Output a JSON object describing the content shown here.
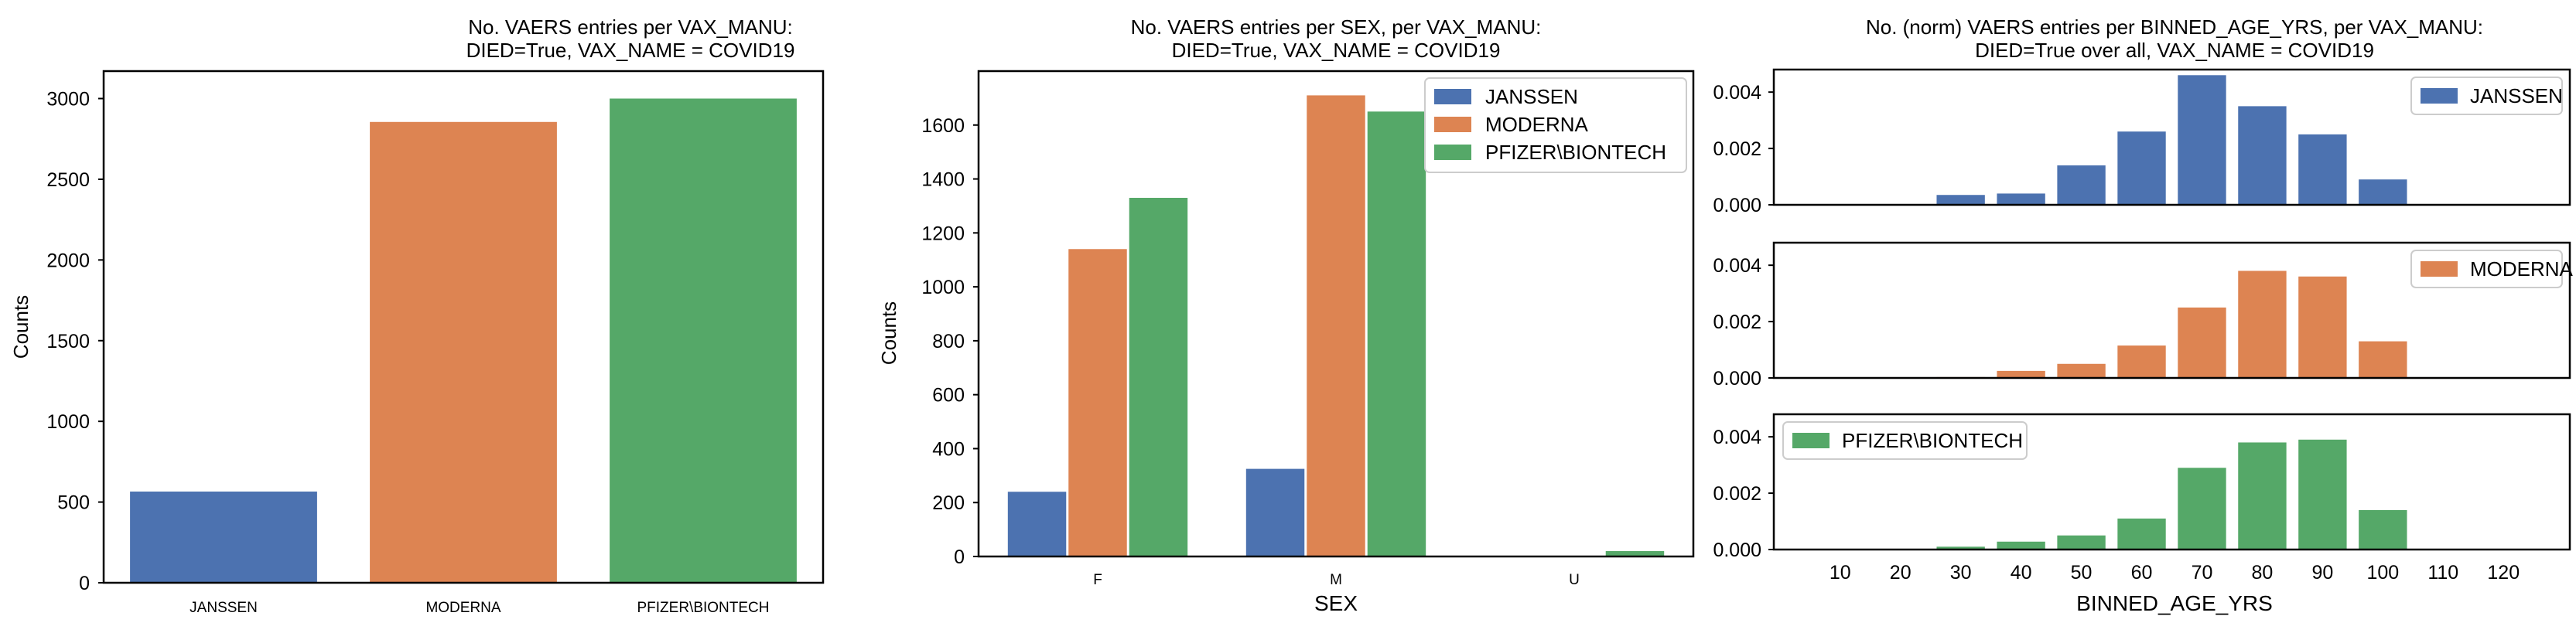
{
  "colors": {
    "JANSSEN": "#4c72b0",
    "MODERNA": "#dd8452",
    "PFIZER\\BIONTECH": "#55a868"
  },
  "chart_data": [
    {
      "type": "bar",
      "title": "No. VAERS entries per VAX_MANU:",
      "subtitle": "DIED=True, VAX_NAME = COVID19",
      "xlabel": "",
      "ylabel": "Counts",
      "categories": [
        "JANSSEN",
        "MODERNA",
        "PFIZER\\BIONTECH"
      ],
      "values": [
        565,
        2855,
        3000
      ],
      "ylim": [
        0,
        3170
      ],
      "yticks": [
        "0",
        "500",
        "1000",
        "1500",
        "2000",
        "2500",
        "3000"
      ],
      "grid": false
    },
    {
      "type": "bar",
      "title": "No. VAERS entries per SEX, per VAX_MANU:",
      "subtitle": "DIED=True, VAX_NAME = COVID19",
      "xlabel": "SEX",
      "ylabel": "Counts",
      "categories": [
        "F",
        "M",
        "U"
      ],
      "series": [
        {
          "name": "JANSSEN",
          "values": [
            240,
            325,
            0
          ]
        },
        {
          "name": "MODERNA",
          "values": [
            1140,
            1710,
            0
          ]
        },
        {
          "name": "PFIZER\\BIONTECH",
          "values": [
            1330,
            1650,
            20
          ]
        }
      ],
      "ylim": [
        0,
        1800
      ],
      "yticks": [
        "0",
        "200",
        "400",
        "600",
        "800",
        "1000",
        "1200",
        "1400",
        "1600"
      ],
      "legend": "top-right",
      "grid": false
    },
    {
      "type": "bar",
      "title": "No. (norm) VAERS entries per BINNED_AGE_YRS, per VAX_MANU:",
      "subtitle": "DIED=True over all, VAX_NAME = COVID19",
      "xlabel": "BINNED_AGE_YRS",
      "ylabel": "",
      "categories": [
        "10",
        "20",
        "30",
        "40",
        "50",
        "60",
        "70",
        "80",
        "90",
        "100",
        "110",
        "120"
      ],
      "yticks": [
        "0.000",
        "0.002",
        "0.004"
      ],
      "ylim": [
        0,
        0.0048
      ],
      "series": [
        {
          "name": "JANSSEN",
          "legend": "top-right",
          "values": [
            0,
            0,
            0.00035,
            0.0004,
            0.0014,
            0.0026,
            0.0046,
            0.0035,
            0.0025,
            0.0009,
            0,
            0
          ]
        },
        {
          "name": "MODERNA",
          "legend": "top-right",
          "values": [
            0,
            0,
            3e-05,
            0.00025,
            0.0005,
            0.00115,
            0.0025,
            0.0038,
            0.0036,
            0.0013,
            0,
            0
          ]
        },
        {
          "name": "PFIZER\\BIONTECH",
          "legend": "top-left",
          "values": [
            0,
            0,
            0.0001,
            0.00028,
            0.0005,
            0.0011,
            0.0029,
            0.0038,
            0.0039,
            0.0014,
            0,
            0
          ]
        }
      ],
      "grid": false
    }
  ]
}
